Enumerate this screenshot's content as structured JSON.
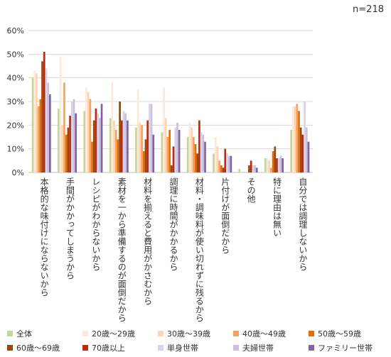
{
  "n_label": "n=218",
  "chart_data": {
    "type": "bar",
    "ylim": [
      0,
      60
    ],
    "yticks": [
      "0%",
      "10%",
      "20%",
      "30%",
      "40%",
      "50%",
      "60%"
    ],
    "categories": [
      "本格的な味付けにならないから",
      "手間がかかってしまうから",
      "レシピがわからないから",
      "素材を一から準備するのが面倒だから",
      "材料を揃えると費用がかさむから",
      "調理に時間がかかるから",
      "材料・調味料が使い切れずに残るから",
      "片付けが面倒だから",
      "その他",
      "特に理由は無い",
      "自分では調理しないから"
    ],
    "series": [
      {
        "name": "全体",
        "color": "#c3d69b",
        "values": [
          40,
          27,
          26,
          23,
          19,
          17,
          15,
          8,
          1.5,
          6,
          18
        ]
      },
      {
        "name": "20歳～29歳",
        "color": "#fde9d9",
        "values": [
          43,
          49,
          36,
          38,
          35,
          36,
          21,
          15,
          0,
          6,
          28
        ]
      },
      {
        "name": "30歳～39歳",
        "color": "#fcd5b4",
        "values": [
          42,
          20,
          34,
          22,
          21,
          23,
          19,
          11,
          0,
          5,
          28
        ]
      },
      {
        "name": "40歳～49歳",
        "color": "#f4a460",
        "values": [
          28,
          38,
          31,
          18,
          20,
          15,
          15,
          5,
          0,
          2,
          29
        ]
      },
      {
        "name": "50歳～59歳",
        "color": "#e46c0a",
        "values": [
          31,
          16,
          13,
          14,
          9,
          18,
          12,
          3,
          0,
          9,
          26
        ]
      },
      {
        "name": "60歳～69歳",
        "color": "#984807",
        "values": [
          47,
          19,
          22,
          30,
          14,
          3,
          8,
          2,
          3,
          11,
          19
        ]
      },
      {
        "name": "70歳以上",
        "color": "#c0290d",
        "values": [
          51,
          24,
          27,
          22,
          22,
          11,
          22,
          10,
          5,
          6,
          16
        ]
      },
      {
        "name": "単身世帯",
        "color": "#d9d2e9",
        "values": [
          44,
          30,
          25,
          26,
          29,
          19,
          17,
          8,
          3,
          6,
          30
        ]
      },
      {
        "name": "夫婦世帯",
        "color": "#ccc0da",
        "values": [
          38,
          31,
          23,
          25,
          29,
          21,
          16,
          7,
          3,
          7,
          19
        ]
      },
      {
        "name": "ファミリー世帯",
        "color": "#8064a2",
        "values": [
          33,
          25,
          29,
          22,
          16,
          18,
          13,
          7,
          2,
          6,
          13
        ]
      }
    ]
  }
}
